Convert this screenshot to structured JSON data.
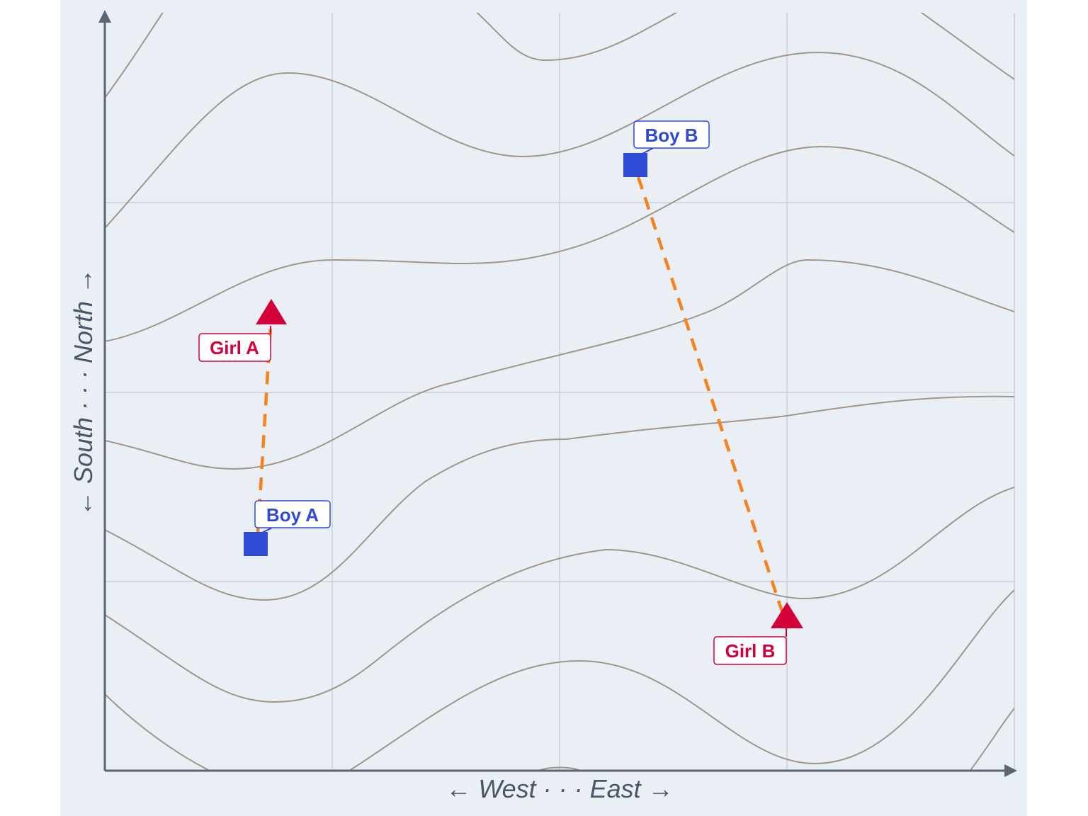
{
  "axes": {
    "x_label": "← West · · · East →",
    "y_label": "← South · · · North →"
  },
  "points": [
    {
      "label": "Boy A"
    },
    {
      "label": "Girl A"
    },
    {
      "label": "Boy B"
    },
    {
      "label": "Girl B"
    }
  ]
}
